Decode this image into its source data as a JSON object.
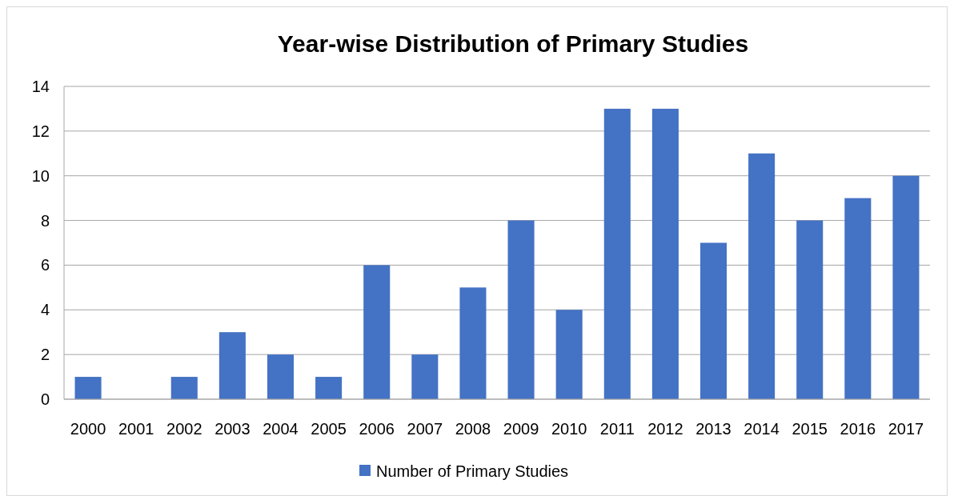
{
  "chart_data": {
    "type": "bar",
    "title": "Year-wise Distribution of Primary Studies",
    "categories": [
      "2000",
      "2001",
      "2002",
      "2003",
      "2004",
      "2005",
      "2006",
      "2007",
      "2008",
      "2009",
      "2010",
      "2011",
      "2012",
      "2013",
      "2014",
      "2015",
      "2016",
      "2017"
    ],
    "series": [
      {
        "name": "Number of Primary Studies",
        "color": "#4472c4",
        "values": [
          1,
          0,
          1,
          3,
          2,
          1,
          6,
          2,
          5,
          8,
          4,
          13,
          13,
          7,
          11,
          8,
          9,
          10
        ]
      }
    ],
    "ylim": [
      0,
      14
    ],
    "yticks": [
      0,
      2,
      4,
      6,
      8,
      10,
      12,
      14
    ],
    "grid": "y",
    "legend": "bottom"
  }
}
